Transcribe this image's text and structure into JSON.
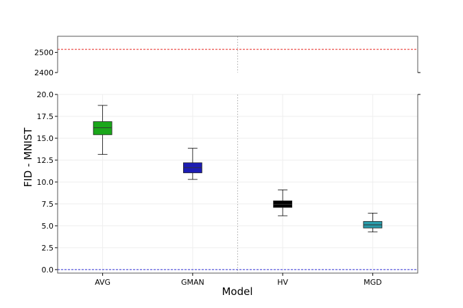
{
  "chart_data": {
    "type": "box",
    "xlabel": "Model",
    "ylabel": "FID - MNIST",
    "categories": [
      "AVG",
      "GMAN",
      "HV",
      "MGD"
    ],
    "boxes": [
      {
        "category": "AVG",
        "whisker_low": 13.15,
        "q1": 15.4,
        "median": 16.2,
        "q3": 16.9,
        "whisker_high": 18.75,
        "color": "#1aa71a"
      },
      {
        "category": "GMAN",
        "whisker_low": 10.3,
        "q1": 11.05,
        "median": 11.65,
        "q3": 12.2,
        "whisker_high": 13.85,
        "color": "#1c1cb4"
      },
      {
        "category": "HV",
        "whisker_low": 6.15,
        "q1": 7.1,
        "median": 7.45,
        "q3": 7.85,
        "whisker_high": 9.1,
        "color": "#000000"
      },
      {
        "category": "MGD",
        "whisker_low": 4.3,
        "q1": 4.75,
        "median": 5.1,
        "q3": 5.5,
        "whisker_high": 6.45,
        "color": "#2a9aa8"
      }
    ],
    "upper_panel": {
      "ylim": [
        2400,
        2580
      ],
      "ticks": [
        "2400",
        "2500"
      ],
      "reference_line": {
        "value": 2515,
        "color": "#e8201a",
        "style": "dashed"
      }
    },
    "lower_panel": {
      "ylim": [
        -0.4,
        20.0
      ],
      "ticks": [
        "0.0",
        "2.5",
        "5.0",
        "7.5",
        "10.0",
        "12.5",
        "15.0",
        "17.5",
        "20.0"
      ],
      "reference_line": {
        "value": 0.0,
        "color": "#2b2bd9",
        "style": "dashed"
      }
    },
    "divider_between": [
      "GMAN",
      "HV"
    ],
    "grid": true,
    "broken_axis": true
  }
}
